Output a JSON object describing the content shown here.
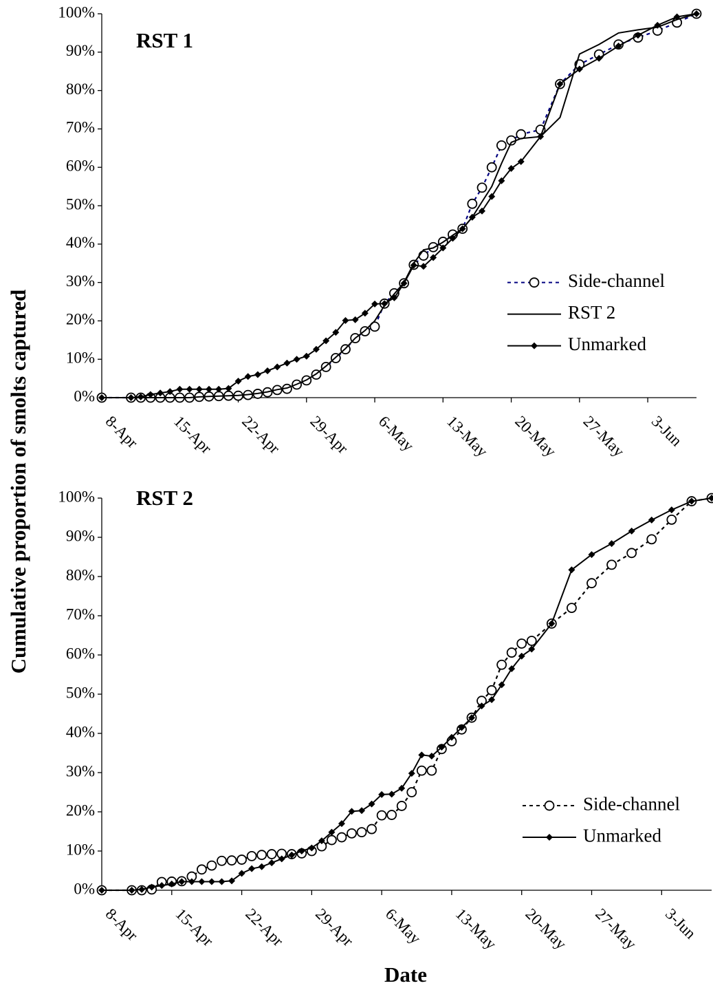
{
  "y_label": "Cumulative proportion of smolts captured",
  "x_label": "Date",
  "chart_data": [
    {
      "type": "line",
      "title": "RST 1",
      "x": [
        "8-Apr",
        "11-Apr",
        "12-Apr",
        "13-Apr",
        "14-Apr",
        "15-Apr",
        "16-Apr",
        "17-Apr",
        "18-Apr",
        "19-Apr",
        "20-Apr",
        "21-Apr",
        "22-Apr",
        "23-Apr",
        "24-Apr",
        "25-Apr",
        "26-Apr",
        "27-Apr",
        "28-Apr",
        "29-Apr",
        "30-Apr",
        "1-May",
        "2-May",
        "3-May",
        "4-May",
        "5-May",
        "6-May",
        "7-May",
        "8-May",
        "9-May",
        "10-May",
        "11-May",
        "12-May",
        "13-May",
        "14-May",
        "15-May",
        "16-May",
        "17-May",
        "18-May",
        "19-May",
        "20-May",
        "21-May",
        "23-May",
        "25-May",
        "27-May",
        "29-May",
        "31-May",
        "2-Jun",
        "4-Jun",
        "6-Jun",
        "8-Jun"
      ],
      "series": [
        {
          "name": "Side-channel",
          "color": "#000080",
          "marker": "circle",
          "dash": true,
          "values": [
            0,
            0,
            0,
            0,
            0,
            0,
            0,
            0,
            0.2,
            0.3,
            0.4,
            0.5,
            0.5,
            0.7,
            1.0,
            1.4,
            2.0,
            2.3,
            3.4,
            4.5,
            6,
            8,
            10.3,
            12.6,
            15.5,
            17.3,
            18.5,
            24.5,
            27.2,
            29.8,
            34.6,
            37,
            39.2,
            40.6,
            42.5,
            44,
            50.5,
            54.7,
            60,
            65.7,
            67,
            68.6,
            69.8,
            81.7,
            86.8,
            89.4,
            92,
            93.8,
            95.6,
            97.7,
            100
          ]
        },
        {
          "name": "RST 2",
          "color": "#000000",
          "marker": "none",
          "dash": false,
          "values": [
            0,
            0,
            0,
            0,
            0,
            0,
            0,
            0,
            0.2,
            0.3,
            0.4,
            0.5,
            0.6,
            0.8,
            1.1,
            1.5,
            2.1,
            2.5,
            3.5,
            4.6,
            6.2,
            8.2,
            10.5,
            12.8,
            15.5,
            17.5,
            20,
            24,
            27,
            30,
            35,
            38.5,
            39,
            40.5,
            42.3,
            44,
            47,
            51,
            55,
            61,
            66.5,
            67.5,
            68,
            73,
            89.5,
            92,
            95,
            95.8,
            96.5,
            98.5,
            100
          ]
        },
        {
          "name": "Unmarked",
          "color": "#000000",
          "marker": "diamond",
          "dash": false,
          "values": [
            0,
            0,
            0.2,
            0.8,
            1.2,
            1.6,
            2.2,
            2.2,
            2.2,
            2.2,
            2.2,
            2.4,
            4.3,
            5.5,
            6.0,
            7.0,
            8.0,
            9.0,
            10.0,
            10.8,
            12.6,
            14.8,
            17,
            20.1,
            20.3,
            22,
            24.4,
            24.5,
            26,
            29.8,
            34.5,
            34.2,
            36.5,
            39,
            41.5,
            44,
            47,
            48.6,
            52.4,
            56.5,
            59.7,
            61.5,
            68,
            81.7,
            85.6,
            88.4,
            91.6,
            94.4,
            97,
            99.2,
            100
          ]
        }
      ],
      "xlim": [
        "8-Apr",
        "8-Jun"
      ],
      "xticks": [
        "8-Apr",
        "15-Apr",
        "22-Apr",
        "29-Apr",
        "6-May",
        "13-May",
        "20-May",
        "27-May",
        "3-Jun"
      ],
      "ylim": [
        0,
        100
      ],
      "yticks": [
        {
          "value": 0,
          "label": "0%"
        },
        {
          "value": 10,
          "label": "10%"
        },
        {
          "value": 20,
          "label": "20%"
        },
        {
          "value": 30,
          "label": "30%"
        },
        {
          "value": 40,
          "label": "40%"
        },
        {
          "value": 50,
          "label": "50%"
        },
        {
          "value": 60,
          "label": "60%"
        },
        {
          "value": 70,
          "label": "70%"
        },
        {
          "value": 80,
          "label": "80%"
        },
        {
          "value": 90,
          "label": "90%"
        },
        {
          "value": 100,
          "label": "100%"
        }
      ],
      "legend": "right"
    },
    {
      "type": "line",
      "title": "RST 2",
      "x": [
        "8-Apr",
        "11-Apr",
        "12-Apr",
        "13-Apr",
        "14-Apr",
        "15-Apr",
        "16-Apr",
        "17-Apr",
        "18-Apr",
        "19-Apr",
        "20-Apr",
        "21-Apr",
        "22-Apr",
        "23-Apr",
        "24-Apr",
        "25-Apr",
        "26-Apr",
        "27-Apr",
        "28-Apr",
        "29-Apr",
        "30-Apr",
        "1-May",
        "2-May",
        "3-May",
        "4-May",
        "5-May",
        "6-May",
        "7-May",
        "8-May",
        "9-May",
        "10-May",
        "11-May",
        "12-May",
        "13-May",
        "14-May",
        "15-May",
        "16-May",
        "17-May",
        "18-May",
        "19-May",
        "20-May",
        "21-May",
        "23-May",
        "25-May",
        "27-May",
        "29-May",
        "31-May",
        "2-Jun",
        "4-Jun",
        "6-Jun",
        "8-Jun"
      ],
      "series": [
        {
          "name": "Side-channel",
          "color": "#000000",
          "marker": "circle",
          "dash": true,
          "values": [
            0,
            0,
            0,
            0.2,
            2.1,
            2.2,
            2.3,
            3.5,
            5.3,
            6.3,
            7.5,
            7.6,
            7.8,
            8.7,
            9.0,
            9.2,
            9.3,
            9.2,
            9.4,
            10.0,
            11.2,
            12.8,
            13.5,
            14.5,
            14.8,
            15.6,
            19.1,
            19.2,
            21.5,
            25,
            30.5,
            30.5,
            36,
            38,
            41,
            44,
            48.3,
            51,
            57.5,
            60.6,
            62.9,
            63.6,
            68,
            72,
            78.3,
            83,
            86,
            89.5,
            94.5,
            99.2,
            100
          ]
        },
        {
          "name": "Unmarked",
          "color": "#000000",
          "marker": "diamond",
          "dash": false,
          "values": [
            0,
            0,
            0.2,
            0.8,
            1.2,
            1.6,
            2.2,
            2.2,
            2.2,
            2.2,
            2.2,
            2.4,
            4.3,
            5.5,
            6.0,
            7.0,
            8.0,
            9.0,
            10.0,
            10.8,
            12.6,
            14.8,
            17,
            20.1,
            20.3,
            22,
            24.4,
            24.5,
            26,
            29.8,
            34.5,
            34.2,
            36.5,
            39,
            41.5,
            44,
            47,
            48.6,
            52.4,
            56.5,
            59.7,
            61.5,
            68,
            81.7,
            85.6,
            88.4,
            91.6,
            94.4,
            97,
            99.2,
            100
          ]
        }
      ],
      "xlim": [
        "8-Apr",
        "8-Jun"
      ],
      "xticks": [
        "8-Apr",
        "15-Apr",
        "22-Apr",
        "29-Apr",
        "6-May",
        "13-May",
        "20-May",
        "27-May",
        "3-Jun"
      ],
      "ylim": [
        0,
        100
      ],
      "yticks": [
        {
          "value": 0,
          "label": "0%"
        },
        {
          "value": 10,
          "label": "10%"
        },
        {
          "value": 20,
          "label": "20%"
        },
        {
          "value": 30,
          "label": "30%"
        },
        {
          "value": 40,
          "label": "40%"
        },
        {
          "value": 50,
          "label": "50%"
        },
        {
          "value": 60,
          "label": "60%"
        },
        {
          "value": 70,
          "label": "70%"
        },
        {
          "value": 80,
          "label": "80%"
        },
        {
          "value": 90,
          "label": "90%"
        },
        {
          "value": 100,
          "label": "100%"
        }
      ],
      "legend": "right"
    }
  ]
}
